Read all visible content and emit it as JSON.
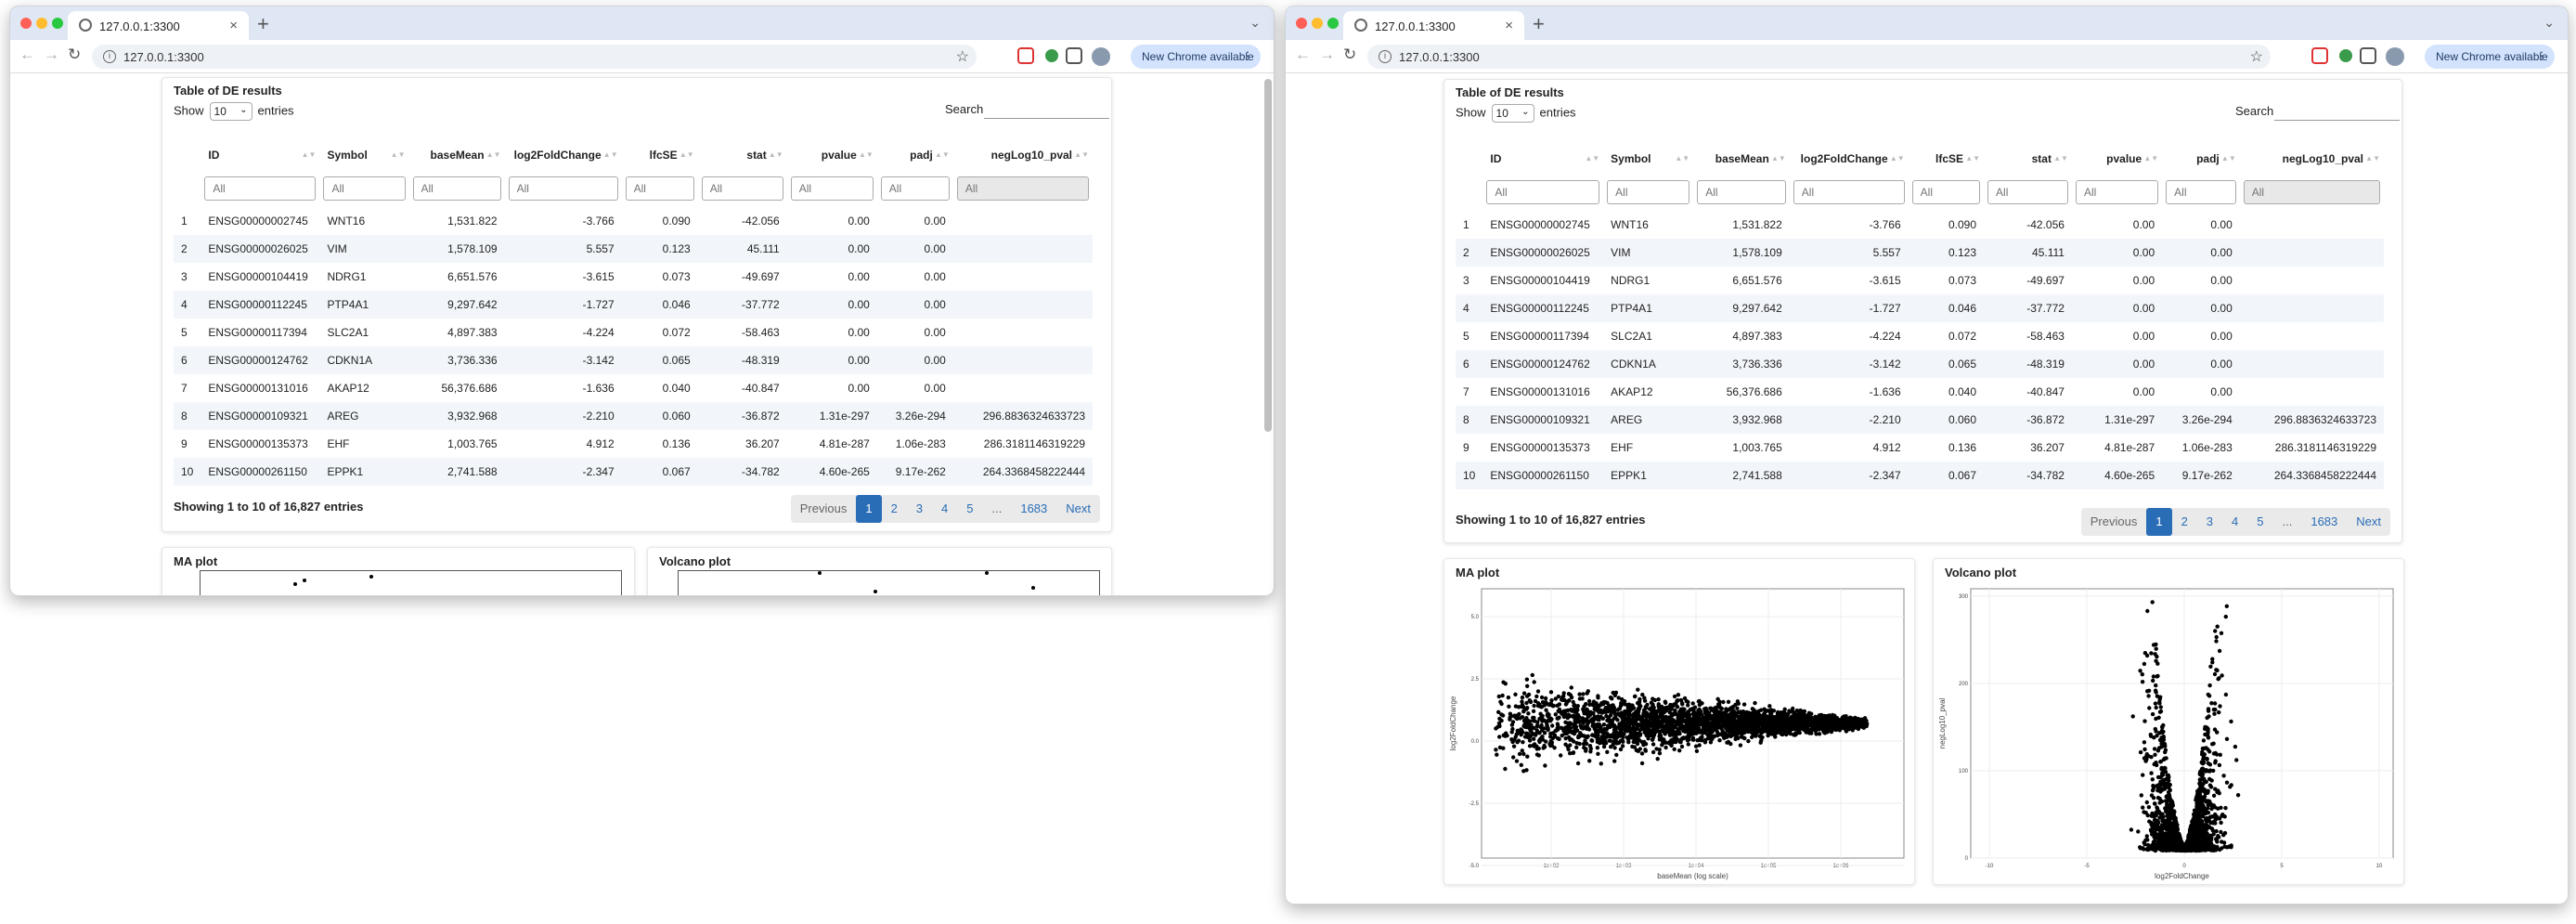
{
  "browser": {
    "tab_title": "127.0.0.1:3300",
    "url": "127.0.0.1:3300",
    "new_chrome": "New Chrome available",
    "colors": {
      "close": "#ff5f57",
      "min": "#febc2e",
      "max": "#28c840"
    }
  },
  "table_card": {
    "title": "Table of DE results",
    "show_label": "Show",
    "length_value": "10",
    "entries_label": "entries",
    "search_label": "Search:",
    "columns": [
      "ID",
      "Symbol",
      "baseMean",
      "log2FoldChange",
      "lfcSE",
      "stat",
      "pvalue",
      "padj",
      "negLog10_pval"
    ],
    "filter_placeholder": "All",
    "rows": [
      [
        "1",
        "ENSG00000002745",
        "WNT16",
        "1,531.822",
        "-3.766",
        "0.090",
        "-42.056",
        "0.00",
        "0.00",
        ""
      ],
      [
        "2",
        "ENSG00000026025",
        "VIM",
        "1,578.109",
        "5.557",
        "0.123",
        "45.111",
        "0.00",
        "0.00",
        ""
      ],
      [
        "3",
        "ENSG00000104419",
        "NDRG1",
        "6,651.576",
        "-3.615",
        "0.073",
        "-49.697",
        "0.00",
        "0.00",
        ""
      ],
      [
        "4",
        "ENSG00000112245",
        "PTP4A1",
        "9,297.642",
        "-1.727",
        "0.046",
        "-37.772",
        "0.00",
        "0.00",
        ""
      ],
      [
        "5",
        "ENSG00000117394",
        "SLC2A1",
        "4,897.383",
        "-4.224",
        "0.072",
        "-58.463",
        "0.00",
        "0.00",
        ""
      ],
      [
        "6",
        "ENSG00000124762",
        "CDKN1A",
        "3,736.336",
        "-3.142",
        "0.065",
        "-48.319",
        "0.00",
        "0.00",
        ""
      ],
      [
        "7",
        "ENSG00000131016",
        "AKAP12",
        "56,376.686",
        "-1.636",
        "0.040",
        "-40.847",
        "0.00",
        "0.00",
        ""
      ],
      [
        "8",
        "ENSG00000109321",
        "AREG",
        "3,932.968",
        "-2.210",
        "0.060",
        "-36.872",
        "1.31e-297",
        "3.26e-294",
        "296.8836324633723"
      ],
      [
        "9",
        "ENSG00000135373",
        "EHF",
        "1,003.765",
        "4.912",
        "0.136",
        "36.207",
        "4.81e-287",
        "1.06e-283",
        "286.3181146319229"
      ],
      [
        "10",
        "ENSG00000261150",
        "EPPK1",
        "2,741.588",
        "-2.347",
        "0.067",
        "-34.782",
        "4.60e-265",
        "9.17e-262",
        "264.3368458222444"
      ]
    ],
    "info": "Showing 1 to 10 of 16,827 entries",
    "pagination": [
      "Previous",
      "1",
      "2",
      "3",
      "4",
      "5",
      "...",
      "1683",
      "Next"
    ]
  },
  "ma_plot": {
    "title": "MA plot",
    "xlabel": "baseMean (log scale)",
    "ylabel": "log2FoldChange",
    "xticks": [
      "1e+02",
      "1e+03",
      "1e+04",
      "1e+05",
      "1e+06"
    ],
    "yticks": [
      "5.0",
      "2.5",
      "0.0",
      "-2.5",
      "-5.0"
    ]
  },
  "volcano_plot": {
    "title": "Volcano plot",
    "xlabel": "log2FoldChange",
    "ylabel": "negLog10_pval",
    "xticks": [
      "-10",
      "-5",
      "0",
      "5",
      "10"
    ],
    "yticks": [
      "300",
      "200",
      "100",
      "0"
    ]
  }
}
